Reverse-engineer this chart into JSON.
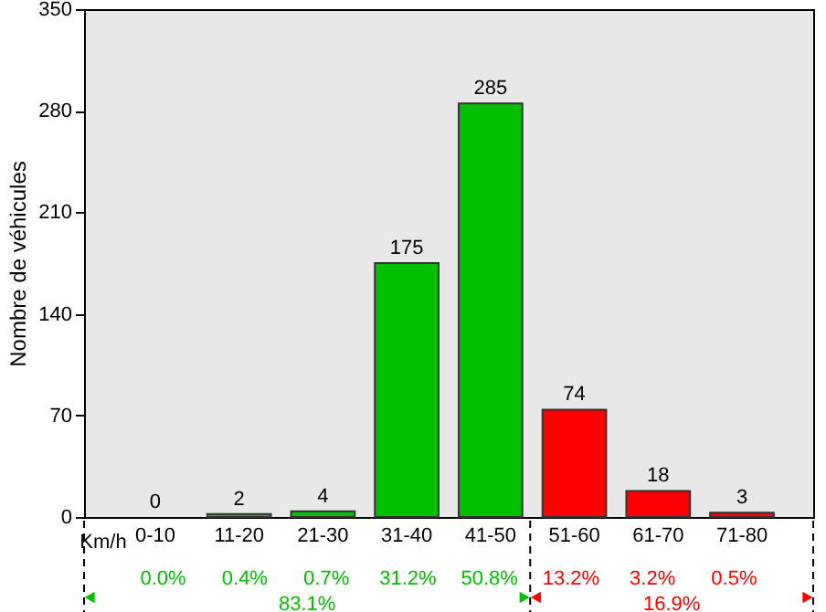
{
  "chart_data": {
    "type": "bar",
    "categories": [
      "0-10",
      "11-20",
      "21-30",
      "31-40",
      "41-50",
      "51-60",
      "61-70",
      "71-80"
    ],
    "values": [
      0,
      2,
      4,
      175,
      285,
      74,
      18,
      3
    ],
    "colors": [
      "#00c000",
      "#00c000",
      "#00c000",
      "#00c000",
      "#00c000",
      "#ff0000",
      "#ff0000",
      "#ff0000"
    ],
    "ylabel": "Nombre de véhicules",
    "xlabel": "Km/h",
    "ylim": [
      0,
      350
    ],
    "yticks": [
      0,
      70,
      140,
      210,
      280,
      350
    ],
    "grid": false,
    "data_labels": true,
    "annotations": [
      "0.0%",
      "0.4%",
      "0.7%",
      "31.2%",
      "50.8%",
      "13.2%",
      "3.2%",
      "0.5%",
      "83.1%",
      "16.9%"
    ]
  }
}
